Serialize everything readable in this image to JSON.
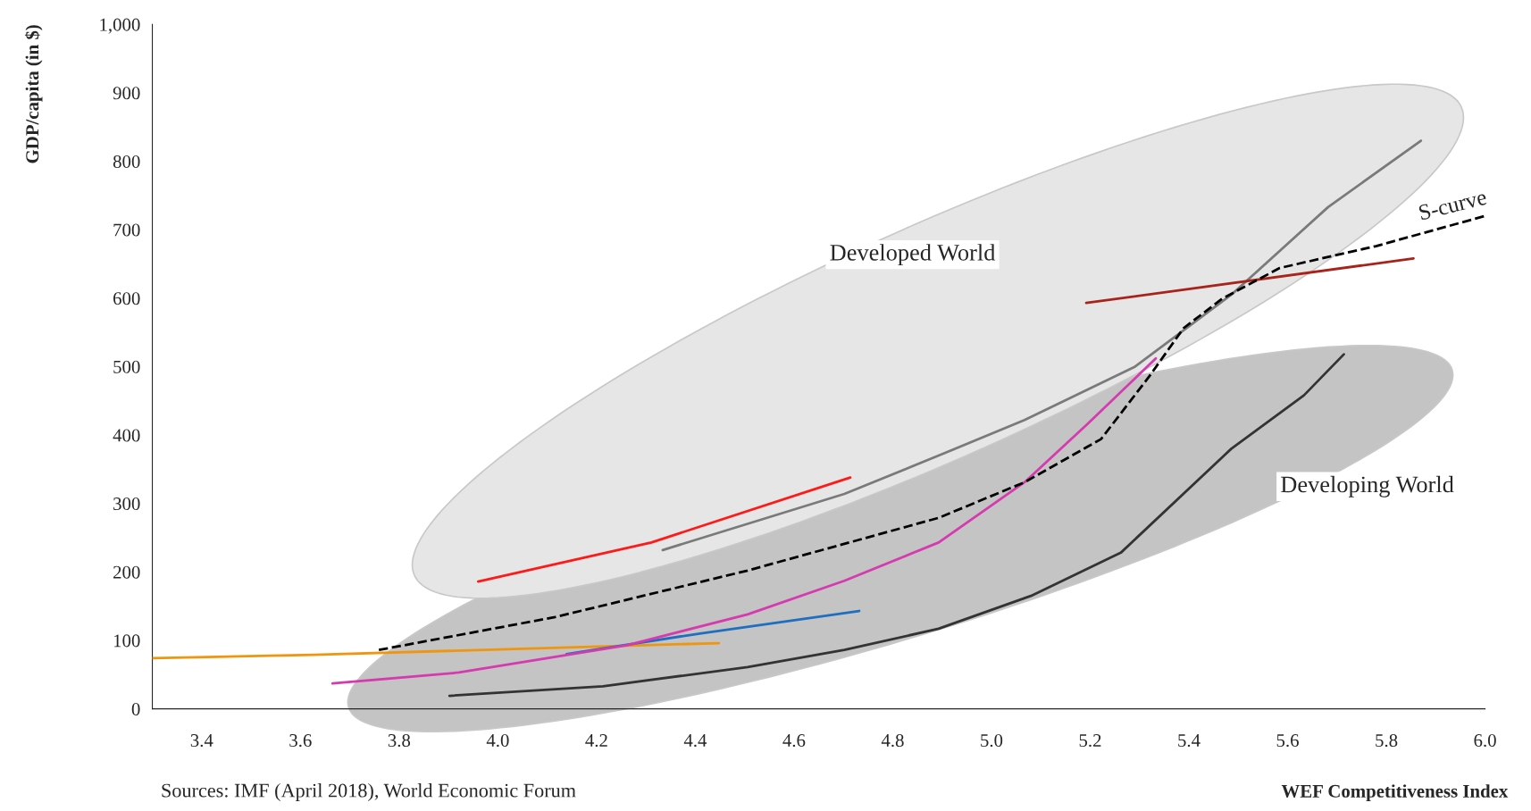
{
  "chart_data": {
    "type": "line",
    "xlabel": "WEF Competitiveness Index",
    "ylabel": "GDP/capita (in $)",
    "xlim": [
      3.3,
      6.0
    ],
    "ylim": [
      0,
      1000
    ],
    "xticks": [
      3.4,
      3.6,
      3.8,
      {
        "value": 4.0,
        "label": "4.0"
      },
      4.2,
      4.4,
      4.6,
      4.8,
      {
        "value": 5.0,
        "label": "5.0"
      },
      5.2,
      5.4,
      5.6,
      5.8,
      {
        "value": 6.0,
        "label": "6.0"
      }
    ],
    "yticks": [
      0,
      100,
      200,
      300,
      400,
      500,
      600,
      700,
      800,
      900,
      {
        "value": 1000,
        "label": "1,000"
      }
    ],
    "grid": false,
    "series": [
      {
        "color": "#f0960e",
        "x": [
          3.3,
          3.627,
          4.448
        ],
        "values": [
          74,
          79,
          96
        ]
      },
      {
        "color": "#1f6fc0",
        "x": [
          4.139,
          4.409,
          4.732
        ],
        "values": [
          80,
          110,
          143
        ]
      },
      {
        "color": "#ff1a1a",
        "x": [
          3.96,
          4.311,
          4.714
        ],
        "values": [
          186,
          243,
          338
        ]
      },
      {
        "color": "#7a7a7a",
        "x": [
          4.334,
          4.702,
          4.893,
          5.067,
          5.291,
          5.486,
          5.682,
          5.87
        ],
        "values": [
          232,
          314,
          370,
          422,
          500,
          605,
          733,
          830
        ]
      },
      {
        "color": "#a8231a",
        "x": [
          5.192,
          5.855
        ],
        "values": [
          593,
          658
        ]
      },
      {
        "color": "#d63aaf",
        "x": [
          3.665,
          3.921,
          4.262,
          4.506,
          4.702,
          4.893,
          5.067,
          5.193,
          5.333
        ],
        "values": [
          37,
          53,
          93,
          138,
          187,
          243,
          331,
          415,
          512
        ]
      },
      {
        "color": "#333333",
        "x": [
          3.902,
          4.213,
          4.506,
          4.702,
          4.893,
          5.08,
          5.262,
          5.486,
          5.633,
          5.714
        ],
        "values": [
          19,
          33,
          61,
          86,
          117,
          165,
          228,
          380,
          458,
          518
        ]
      },
      {
        "color": "#000000",
        "line_style": "dashed",
        "x": [
          3.759,
          4.116,
          4.506,
          4.893,
          5.067,
          5.222,
          5.32,
          5.389,
          5.467,
          5.584,
          5.779,
          6.0
        ],
        "values": [
          86,
          134,
          202,
          279,
          331,
          394,
          486,
          556,
          599,
          644,
          676,
          720
        ]
      }
    ],
    "annotations": [
      "Sources: IMF (April 2018), World Economic Forum",
      "Developed World",
      "Developing World",
      "S-curve"
    ]
  }
}
